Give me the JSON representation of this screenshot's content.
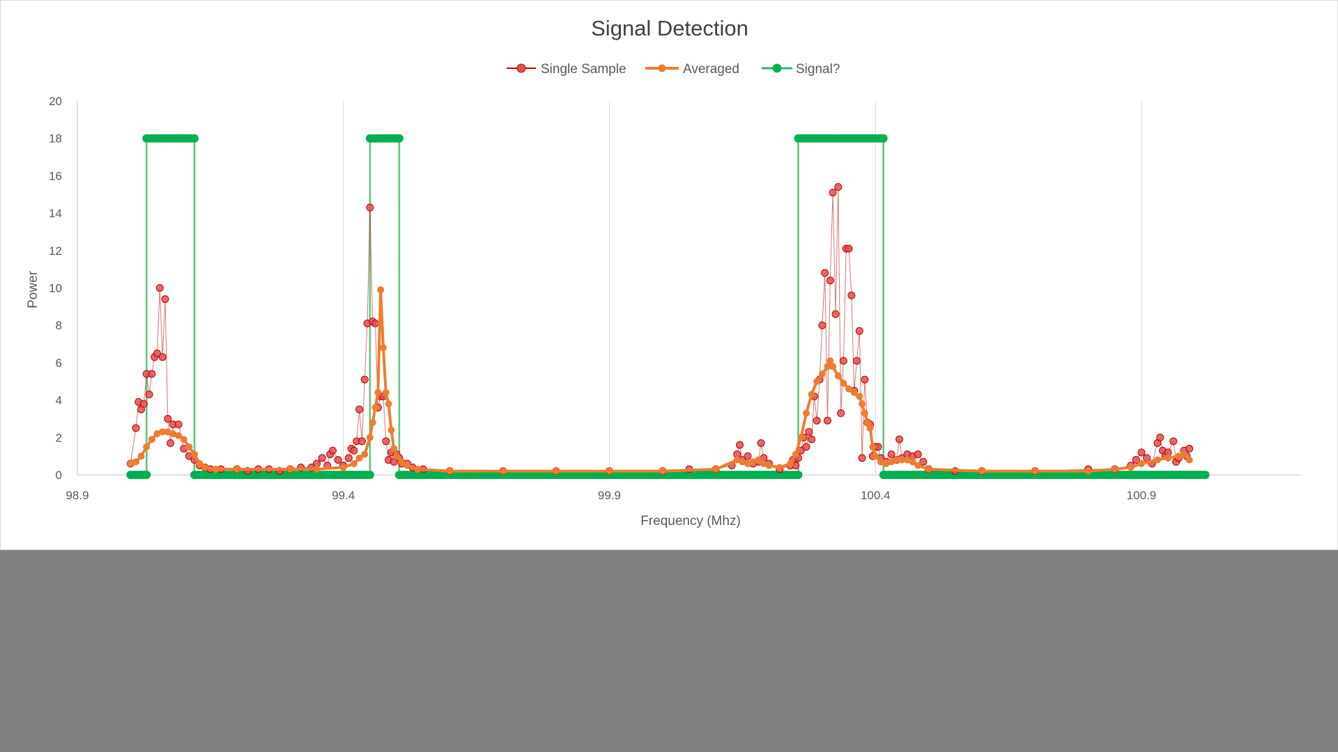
{
  "colors": {
    "single": "#C00000",
    "single_fill": "#E05050",
    "averaged": "#ED7D31",
    "signal": "#00B050",
    "signal_line": "#2FB860",
    "grid": "#D9D9D9",
    "axis": "#BFBFBF",
    "text": "#595959",
    "background": "#808080",
    "panel": "#FFFFFF"
  },
  "chart_data": {
    "type": "line",
    "title": "Signal Detection",
    "xlabel": "Frequency (Mhz)",
    "ylabel": "Power",
    "xlim": [
      98.9,
      101.2
    ],
    "ylim": [
      0,
      20
    ],
    "x_ticks": [
      {
        "value": 98.9,
        "label": "98.9"
      },
      {
        "value": 99.4,
        "label": "99.4"
      },
      {
        "value": 99.9,
        "label": "99.9"
      },
      {
        "value": 100.4,
        "label": "100.4"
      },
      {
        "value": 100.9,
        "label": "100.9"
      }
    ],
    "y_ticks": [
      {
        "value": 0,
        "label": "0"
      },
      {
        "value": 2,
        "label": "2"
      },
      {
        "value": 4,
        "label": "4"
      },
      {
        "value": 6,
        "label": "6"
      },
      {
        "value": 8,
        "label": "8"
      },
      {
        "value": 10,
        "label": "10"
      },
      {
        "value": 12,
        "label": "12"
      },
      {
        "value": 14,
        "label": "14"
      },
      {
        "value": 16,
        "label": "16"
      },
      {
        "value": 18,
        "label": "18"
      },
      {
        "value": 20,
        "label": "20"
      }
    ],
    "grid": "vertical",
    "legend": "top-center",
    "series": [
      {
        "name": "Single Sample",
        "style": "line-markers",
        "points": [
          [
            99.0,
            0.6
          ],
          [
            99.01,
            2.5
          ],
          [
            99.015,
            3.9
          ],
          [
            99.02,
            3.5
          ],
          [
            99.025,
            3.8
          ],
          [
            99.03,
            5.4
          ],
          [
            99.035,
            4.3
          ],
          [
            99.04,
            5.4
          ],
          [
            99.045,
            6.3
          ],
          [
            99.05,
            6.5
          ],
          [
            99.055,
            10.0
          ],
          [
            99.06,
            6.3
          ],
          [
            99.065,
            9.4
          ],
          [
            99.07,
            3.0
          ],
          [
            99.075,
            1.7
          ],
          [
            99.08,
            2.7
          ],
          [
            99.09,
            2.7
          ],
          [
            99.1,
            1.4
          ],
          [
            99.11,
            1.0
          ],
          [
            99.12,
            0.8
          ],
          [
            99.13,
            0.5
          ],
          [
            99.14,
            0.4
          ],
          [
            99.15,
            0.3
          ],
          [
            99.17,
            0.3
          ],
          [
            99.2,
            0.3
          ],
          [
            99.22,
            0.2
          ],
          [
            99.24,
            0.3
          ],
          [
            99.26,
            0.3
          ],
          [
            99.28,
            0.2
          ],
          [
            99.3,
            0.3
          ],
          [
            99.32,
            0.4
          ],
          [
            99.34,
            0.4
          ],
          [
            99.35,
            0.6
          ],
          [
            99.36,
            0.9
          ],
          [
            99.37,
            0.5
          ],
          [
            99.375,
            1.1
          ],
          [
            99.38,
            1.3
          ],
          [
            99.39,
            0.8
          ],
          [
            99.4,
            0.5
          ],
          [
            99.41,
            0.9
          ],
          [
            99.415,
            1.4
          ],
          [
            99.42,
            1.3
          ],
          [
            99.425,
            1.8
          ],
          [
            99.43,
            3.5
          ],
          [
            99.435,
            1.8
          ],
          [
            99.44,
            5.1
          ],
          [
            99.445,
            8.1
          ],
          [
            99.45,
            14.3
          ],
          [
            99.455,
            8.2
          ],
          [
            99.46,
            8.1
          ],
          [
            99.465,
            3.6
          ],
          [
            99.47,
            4.2
          ],
          [
            99.475,
            4.2
          ],
          [
            99.48,
            1.8
          ],
          [
            99.485,
            0.8
          ],
          [
            99.49,
            1.2
          ],
          [
            99.495,
            0.7
          ],
          [
            99.5,
            1.1
          ],
          [
            99.505,
            0.9
          ],
          [
            99.51,
            0.6
          ],
          [
            99.52,
            0.6
          ],
          [
            99.53,
            0.4
          ],
          [
            99.55,
            0.3
          ],
          [
            99.6,
            0.2
          ],
          [
            99.7,
            0.2
          ],
          [
            99.8,
            0.2
          ],
          [
            99.9,
            0.2
          ],
          [
            100.0,
            0.2
          ],
          [
            100.05,
            0.3
          ],
          [
            100.1,
            0.3
          ],
          [
            100.13,
            0.5
          ],
          [
            100.14,
            1.1
          ],
          [
            100.145,
            1.6
          ],
          [
            100.15,
            0.8
          ],
          [
            100.16,
            1.0
          ],
          [
            100.17,
            0.6
          ],
          [
            100.18,
            0.7
          ],
          [
            100.185,
            1.7
          ],
          [
            100.19,
            0.9
          ],
          [
            100.2,
            0.6
          ],
          [
            100.22,
            0.3
          ],
          [
            100.24,
            0.5
          ],
          [
            100.245,
            0.8
          ],
          [
            100.25,
            0.5
          ],
          [
            100.255,
            0.9
          ],
          [
            100.26,
            1.3
          ],
          [
            100.265,
            2.0
          ],
          [
            100.27,
            1.5
          ],
          [
            100.275,
            2.3
          ],
          [
            100.28,
            1.9
          ],
          [
            100.285,
            4.2
          ],
          [
            100.29,
            2.9
          ],
          [
            100.295,
            5.1
          ],
          [
            100.3,
            8.0
          ],
          [
            100.305,
            10.8
          ],
          [
            100.31,
            2.9
          ],
          [
            100.315,
            10.4
          ],
          [
            100.32,
            15.1
          ],
          [
            100.325,
            8.6
          ],
          [
            100.33,
            15.4
          ],
          [
            100.335,
            3.3
          ],
          [
            100.34,
            6.1
          ],
          [
            100.345,
            12.1
          ],
          [
            100.35,
            12.1
          ],
          [
            100.355,
            9.6
          ],
          [
            100.36,
            4.5
          ],
          [
            100.365,
            6.1
          ],
          [
            100.37,
            7.7
          ],
          [
            100.375,
            0.9
          ],
          [
            100.38,
            5.1
          ],
          [
            100.385,
            2.8
          ],
          [
            100.39,
            2.7
          ],
          [
            100.395,
            1.0
          ],
          [
            100.4,
            1.5
          ],
          [
            100.405,
            1.5
          ],
          [
            100.41,
            0.9
          ],
          [
            100.42,
            0.7
          ],
          [
            100.43,
            1.1
          ],
          [
            100.44,
            0.8
          ],
          [
            100.445,
            1.9
          ],
          [
            100.45,
            0.9
          ],
          [
            100.46,
            1.1
          ],
          [
            100.47,
            1.0
          ],
          [
            100.48,
            1.1
          ],
          [
            100.49,
            0.7
          ],
          [
            100.5,
            0.3
          ],
          [
            100.55,
            0.2
          ],
          [
            100.6,
            0.2
          ],
          [
            100.7,
            0.2
          ],
          [
            100.8,
            0.3
          ],
          [
            100.85,
            0.3
          ],
          [
            100.88,
            0.5
          ],
          [
            100.89,
            0.8
          ],
          [
            100.9,
            1.2
          ],
          [
            100.91,
            0.9
          ],
          [
            100.92,
            0.6
          ],
          [
            100.93,
            1.7
          ],
          [
            100.935,
            2.0
          ],
          [
            100.94,
            1.3
          ],
          [
            100.945,
            1.0
          ],
          [
            100.95,
            1.2
          ],
          [
            100.96,
            1.8
          ],
          [
            100.965,
            0.7
          ],
          [
            100.97,
            0.9
          ],
          [
            100.98,
            1.3
          ],
          [
            100.985,
            1.0
          ],
          [
            100.99,
            1.4
          ]
        ]
      },
      {
        "name": "Averaged",
        "style": "line-markers",
        "points": [
          [
            99.0,
            0.6
          ],
          [
            99.01,
            0.7
          ],
          [
            99.02,
            1.0
          ],
          [
            99.03,
            1.5
          ],
          [
            99.04,
            1.9
          ],
          [
            99.05,
            2.2
          ],
          [
            99.06,
            2.3
          ],
          [
            99.07,
            2.3
          ],
          [
            99.08,
            2.2
          ],
          [
            99.09,
            2.1
          ],
          [
            99.1,
            1.9
          ],
          [
            99.11,
            1.5
          ],
          [
            99.12,
            1.1
          ],
          [
            99.13,
            0.6
          ],
          [
            99.14,
            0.4
          ],
          [
            99.16,
            0.3
          ],
          [
            99.2,
            0.3
          ],
          [
            99.3,
            0.3
          ],
          [
            99.35,
            0.3
          ],
          [
            99.4,
            0.4
          ],
          [
            99.42,
            0.6
          ],
          [
            99.43,
            0.9
          ],
          [
            99.44,
            1.1
          ],
          [
            99.45,
            2.0
          ],
          [
            99.455,
            2.8
          ],
          [
            99.46,
            3.6
          ],
          [
            99.465,
            4.4
          ],
          [
            99.47,
            9.9
          ],
          [
            99.475,
            6.8
          ],
          [
            99.48,
            4.4
          ],
          [
            99.485,
            3.8
          ],
          [
            99.49,
            2.4
          ],
          [
            99.495,
            1.4
          ],
          [
            99.5,
            1.0
          ],
          [
            99.51,
            0.7
          ],
          [
            99.52,
            0.5
          ],
          [
            99.54,
            0.3
          ],
          [
            99.6,
            0.2
          ],
          [
            99.7,
            0.2
          ],
          [
            99.8,
            0.2
          ],
          [
            99.9,
            0.2
          ],
          [
            100.0,
            0.2
          ],
          [
            100.1,
            0.3
          ],
          [
            100.14,
            0.8
          ],
          [
            100.15,
            0.7
          ],
          [
            100.16,
            0.6
          ],
          [
            100.17,
            0.7
          ],
          [
            100.18,
            0.8
          ],
          [
            100.19,
            0.6
          ],
          [
            100.2,
            0.5
          ],
          [
            100.22,
            0.4
          ],
          [
            100.24,
            0.6
          ],
          [
            100.25,
            1.1
          ],
          [
            100.26,
            2.0
          ],
          [
            100.27,
            3.3
          ],
          [
            100.28,
            4.3
          ],
          [
            100.29,
            5.0
          ],
          [
            100.3,
            5.4
          ],
          [
            100.31,
            5.8
          ],
          [
            100.315,
            6.1
          ],
          [
            100.32,
            5.8
          ],
          [
            100.33,
            5.3
          ],
          [
            100.34,
            4.9
          ],
          [
            100.35,
            4.6
          ],
          [
            100.36,
            4.4
          ],
          [
            100.37,
            4.2
          ],
          [
            100.375,
            3.8
          ],
          [
            100.38,
            3.3
          ],
          [
            100.385,
            2.8
          ],
          [
            100.39,
            2.5
          ],
          [
            100.395,
            1.5
          ],
          [
            100.4,
            1.0
          ],
          [
            100.41,
            0.7
          ],
          [
            100.42,
            0.6
          ],
          [
            100.43,
            0.7
          ],
          [
            100.44,
            0.8
          ],
          [
            100.45,
            0.8
          ],
          [
            100.46,
            0.8
          ],
          [
            100.47,
            0.7
          ],
          [
            100.48,
            0.5
          ],
          [
            100.5,
            0.3
          ],
          [
            100.6,
            0.2
          ],
          [
            100.7,
            0.2
          ],
          [
            100.8,
            0.2
          ],
          [
            100.85,
            0.3
          ],
          [
            100.88,
            0.4
          ],
          [
            100.9,
            0.6
          ],
          [
            100.93,
            0.8
          ],
          [
            100.95,
            0.9
          ],
          [
            100.97,
            1.0
          ],
          [
            100.98,
            1.1
          ],
          [
            100.99,
            0.8
          ]
        ]
      },
      {
        "name": "Signal?",
        "style": "line-markers-step",
        "points": [
          [
            99.0,
            0
          ],
          [
            99.03,
            0
          ],
          [
            99.03,
            18
          ],
          [
            99.12,
            18
          ],
          [
            99.12,
            0
          ],
          [
            99.45,
            0
          ],
          [
            99.45,
            18
          ],
          [
            99.505,
            18
          ],
          [
            99.505,
            0
          ],
          [
            100.255,
            0
          ],
          [
            100.255,
            18
          ],
          [
            100.415,
            18
          ],
          [
            100.415,
            0
          ],
          [
            101.02,
            0
          ]
        ]
      }
    ]
  }
}
